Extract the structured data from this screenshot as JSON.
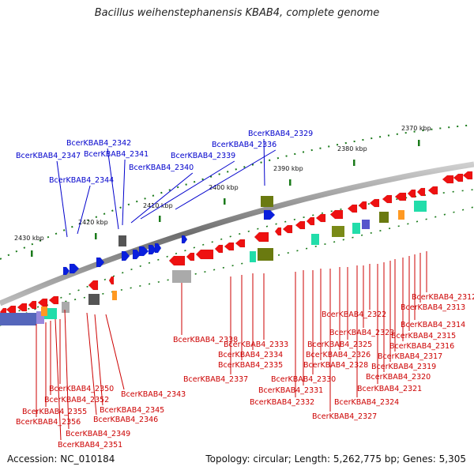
{
  "title": "Bacillus weihenstephanensis KBAB4, complete genome",
  "footer": {
    "accession": "Accession: NC_010184",
    "summary": "Topology: circular; Length: 5,262,775 bp; Genes: 5,305"
  },
  "colors": {
    "forward_label": "#0000cc",
    "reverse_label": "#cc0000",
    "backbone": "#888888",
    "tick": "#1a7a1a"
  },
  "kbp_labels": [
    "2370 kbp",
    "2380 kbp",
    "2390 kbp",
    "2400 kbp",
    "2410 kbp",
    "2420 kbp",
    "2430 kbp"
  ],
  "forward_genes": [
    "BcerKBAB4_2329",
    "BcerKBAB4_2336",
    "BcerKBAB4_2339",
    "BcerKBAB4_2340",
    "BcerKBAB4_2341",
    "BcerKBAB4_2342",
    "BcerKBAB4_2344",
    "BcerKBAB4_2347"
  ],
  "reverse_genes": [
    "BcerKBAB4_2312",
    "BcerKBAB4_2313",
    "BcerKBAB4_2314",
    "BcerKBAB4_2315",
    "BcerKBAB4_2316",
    "BcerKBAB4_2317",
    "BcerKBAB4_2319",
    "BcerKBAB4_2320",
    "BcerKBAB4_2321",
    "BcerKBAB4_2322",
    "BcerKBAB4_2323",
    "BcerKBAB4_2324",
    "BcerKBAB4_2325",
    "BcerKBAB4_2326",
    "BcerKBAB4_2327",
    "BcerKBAB4_2328",
    "BcerKBAB4_2330",
    "BcerKBAB4_2331",
    "BcerKBAB4_2332",
    "BcerKBAB4_2333",
    "BcerKBAB4_2334",
    "BcerKBAB4_2335",
    "BcerKBAB4_2337",
    "BcerKBAB4_2338",
    "BcerKBAB4_2343",
    "BcerKBAB4_2345",
    "BcerKBAB4_2346",
    "BcerKBAB4_2349",
    "BcerKBAB4_2350",
    "BcerKBAB4_2351",
    "BcerKBAB4_2352",
    "BcerKBAB4_2355",
    "BcerKBAB4_2356"
  ]
}
